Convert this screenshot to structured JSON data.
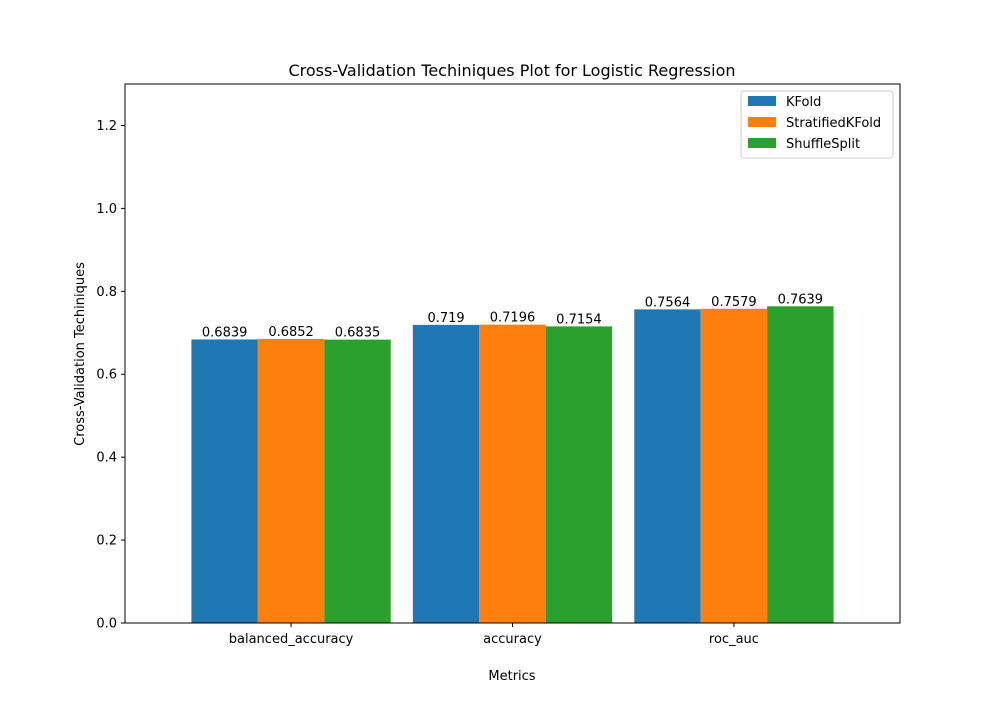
{
  "chart_data": {
    "type": "bar",
    "title": "Cross-Validation Techiniques Plot for Logistic Regression",
    "xlabel": "Metrics",
    "ylabel": "Cross-Validation Techiniques",
    "categories": [
      "balanced_accuracy",
      "accuracy",
      "roc_auc"
    ],
    "series": [
      {
        "name": "KFold",
        "color": "#1f77b4",
        "values": [
          0.6839,
          0.719,
          0.7564
        ],
        "labels": [
          "0.6839",
          "0.719",
          "0.7564"
        ]
      },
      {
        "name": "StratifiedKFold",
        "color": "#ff7f0e",
        "values": [
          0.6852,
          0.7196,
          0.7579
        ],
        "labels": [
          "0.6852",
          "0.7196",
          "0.7579"
        ]
      },
      {
        "name": "ShuffleSplit",
        "color": "#2ca02c",
        "values": [
          0.6835,
          0.7154,
          0.7639
        ],
        "labels": [
          "0.6835",
          "0.7154",
          "0.7639"
        ]
      }
    ],
    "yticks": [
      "0.0",
      "0.2",
      "0.4",
      "0.6",
      "0.8",
      "1.0",
      "1.2"
    ],
    "ylim": [
      0,
      1.3
    ],
    "grid": false,
    "legend_position": "top-right"
  }
}
